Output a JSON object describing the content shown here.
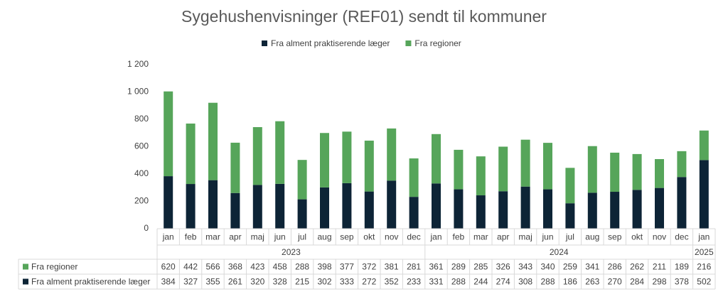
{
  "chart_data": {
    "type": "bar",
    "stacked": true,
    "title": "Sygehushenvisninger (REF01) sendt til kommuner",
    "category_groups": [
      {
        "label": "2023",
        "categories": [
          "jan",
          "feb",
          "mar",
          "apr",
          "maj",
          "jun",
          "jul",
          "aug",
          "sep",
          "okt",
          "nov",
          "dec"
        ]
      },
      {
        "label": "2024",
        "categories": [
          "jan",
          "feb",
          "mar",
          "apr",
          "maj",
          "jun",
          "jul",
          "aug",
          "sep",
          "okt",
          "nov",
          "dec"
        ]
      },
      {
        "label": "2025",
        "categories": [
          "jan"
        ]
      }
    ],
    "series": [
      {
        "name": "Fra alment praktiserende læger",
        "color": "#0d2436",
        "values": [
          384,
          327,
          355,
          261,
          320,
          328,
          215,
          302,
          333,
          272,
          352,
          233,
          331,
          288,
          244,
          274,
          308,
          288,
          186,
          263,
          270,
          284,
          298,
          378,
          502
        ]
      },
      {
        "name": "Fra regioner",
        "color": "#56a55a",
        "values": [
          620,
          442,
          566,
          368,
          423,
          458,
          288,
          398,
          377,
          372,
          381,
          281,
          361,
          289,
          285,
          326,
          343,
          340,
          259,
          341,
          286,
          262,
          211,
          189,
          216
        ]
      }
    ],
    "ylim": [
      0,
      1200
    ],
    "yticks": [
      0,
      200,
      400,
      600,
      800,
      {
        "value": 1000,
        "label": "1 000"
      },
      {
        "value": 1200,
        "label": "1 200"
      }
    ],
    "grid": false,
    "legend": "top",
    "data_table": true
  }
}
